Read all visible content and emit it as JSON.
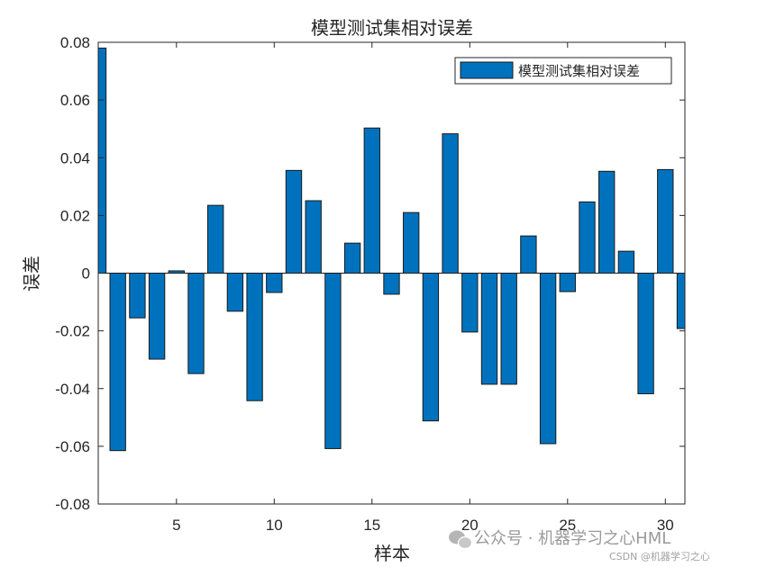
{
  "chart_data": {
    "type": "bar",
    "title": "模型测试集相对误差",
    "xlabel": "样本",
    "ylabel": "误差",
    "xlim": [
      1,
      31
    ],
    "ylim": [
      -0.08,
      0.08
    ],
    "xticks": [
      5,
      10,
      15,
      20,
      25,
      30
    ],
    "yticks": [
      -0.08,
      -0.06,
      -0.04,
      -0.02,
      0,
      0.02,
      0.04,
      0.06,
      0.08
    ],
    "ytick_labels": [
      "-0.08",
      "-0.06",
      "-0.04",
      "-0.02",
      "0",
      "0.02",
      "0.04",
      "0.06",
      "0.08"
    ],
    "legend_position": "top-right",
    "grid": false,
    "bar_color": "#0072BD",
    "series": [
      {
        "name": "模型测试集相对误差",
        "x": [
          1,
          2,
          3,
          4,
          5,
          6,
          7,
          8,
          9,
          10,
          11,
          12,
          13,
          14,
          15,
          16,
          17,
          18,
          19,
          20,
          21,
          22,
          23,
          24,
          25,
          26,
          27,
          28,
          29,
          30,
          31
        ],
        "values": [
          0.078,
          -0.0615,
          -0.0155,
          -0.0298,
          0.0008,
          -0.0348,
          0.0235,
          -0.0132,
          -0.0442,
          -0.0067,
          0.0356,
          0.0251,
          -0.0608,
          0.0104,
          0.0503,
          -0.0073,
          0.021,
          -0.0512,
          0.0483,
          -0.0204,
          -0.0385,
          -0.0385,
          0.0129,
          -0.0591,
          -0.0064,
          0.0247,
          0.0353,
          0.0076,
          -0.0418,
          0.0359,
          -0.0192
        ]
      }
    ]
  },
  "watermark": {
    "line1": "公众号 · 机器学习之心HML",
    "line2": "CSDN @机器学习之心"
  }
}
